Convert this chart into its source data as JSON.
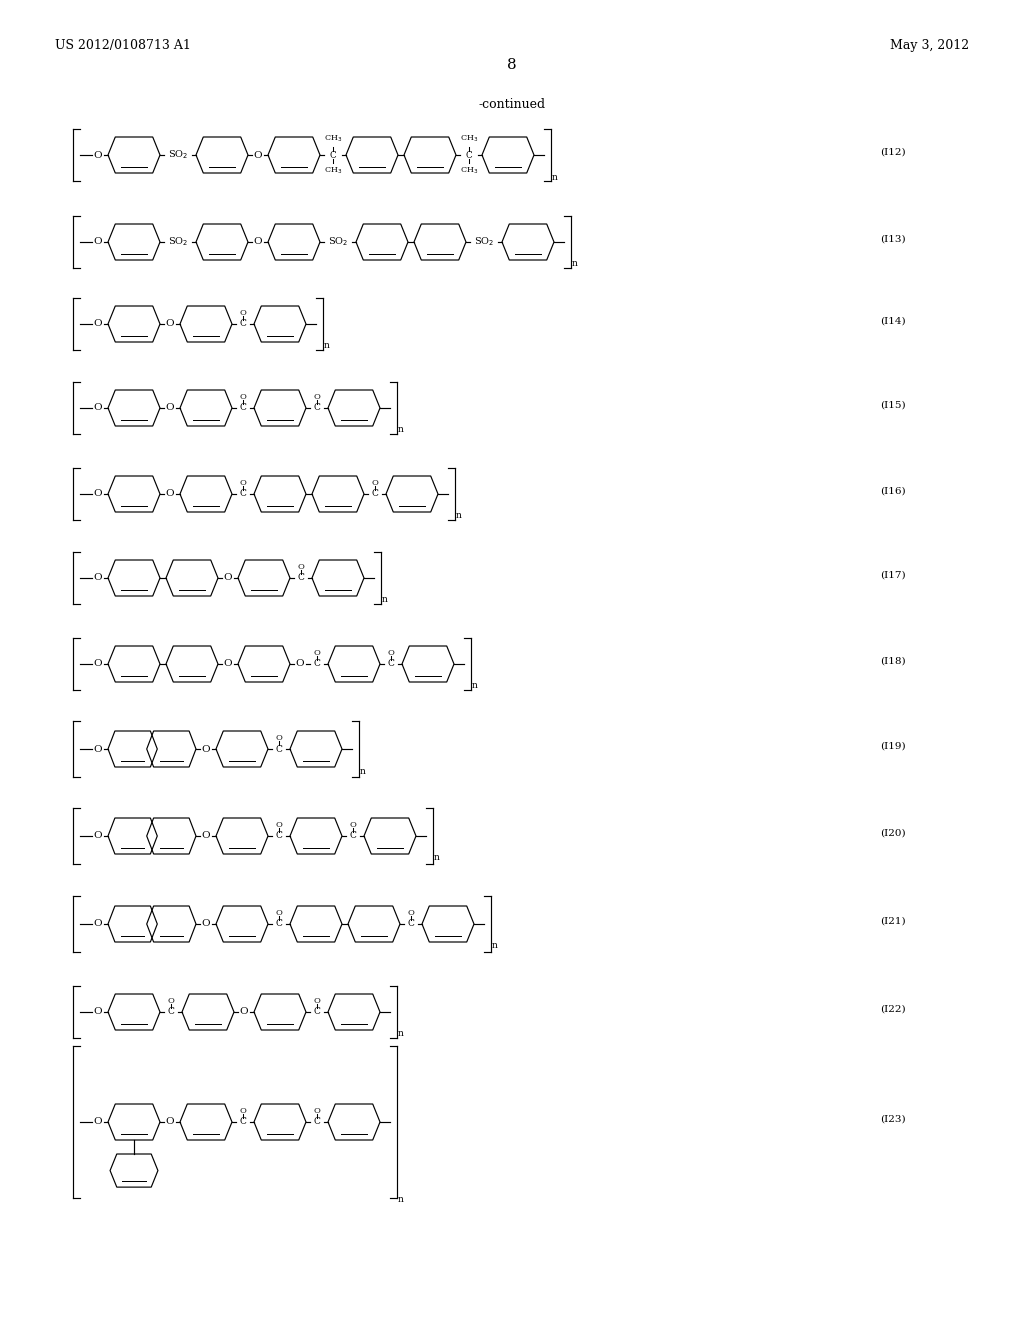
{
  "page_header_left": "US 2012/0108713 A1",
  "page_header_right": "May 3, 2012",
  "page_number": "8",
  "continued_text": "-continued",
  "background_color": "#ffffff",
  "text_color": "#000000"
}
